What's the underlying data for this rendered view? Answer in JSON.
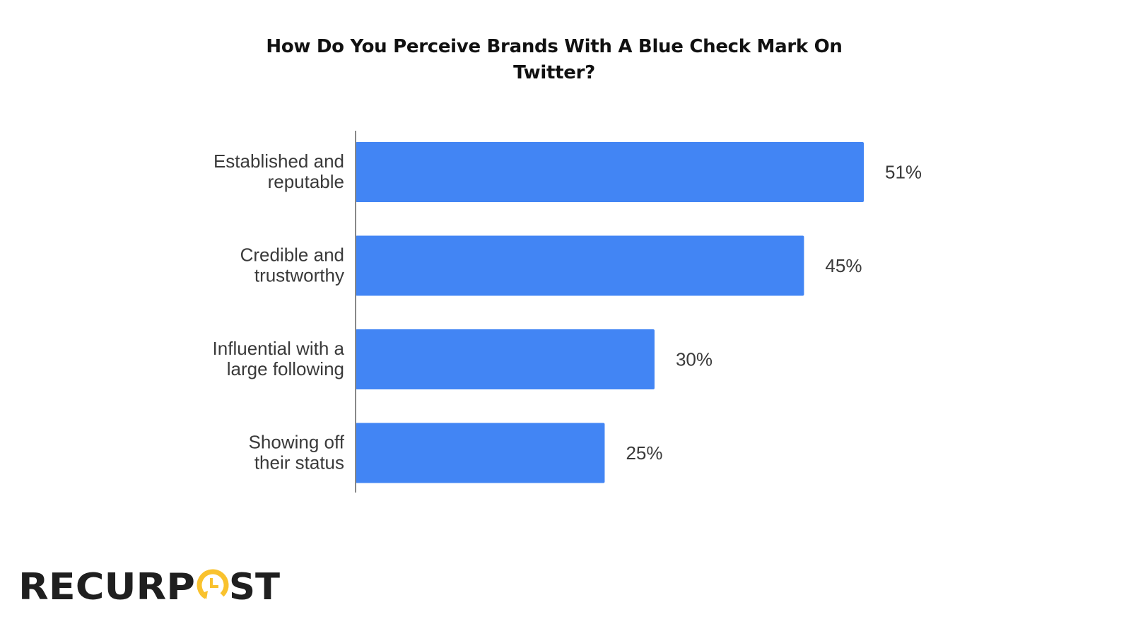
{
  "chart_data": {
    "type": "bar",
    "orientation": "horizontal",
    "title": "How Do You Perceive Brands With A Blue Check Mark On Twitter?",
    "categories": [
      [
        "Established and",
        "reputable"
      ],
      [
        "Credible and",
        "trustworthy"
      ],
      [
        "Influential with a",
        "large following"
      ],
      [
        "Showing off",
        "their status"
      ]
    ],
    "values": [
      51,
      45,
      30,
      25
    ],
    "value_labels": [
      "51%",
      "45%",
      "30%",
      "25%"
    ],
    "unit": "%",
    "xlim": [
      0,
      51
    ],
    "grid": false,
    "bar_color": "#4285f4"
  },
  "logo": {
    "text": "RECURPOST",
    "colors": {
      "text": "#1f1f1f",
      "accent": "#f9c22e"
    }
  }
}
